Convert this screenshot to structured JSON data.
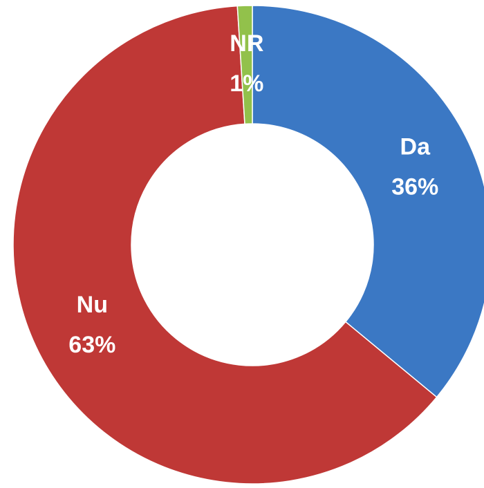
{
  "chart_data": {
    "type": "donut",
    "categories": [
      "Da",
      "Nu",
      "NR"
    ],
    "values": [
      36,
      63,
      1
    ],
    "value_labels": [
      "36%",
      "63%",
      "1%"
    ],
    "colors": [
      "#3b78c4",
      "#bf3836",
      "#92c14b"
    ]
  }
}
